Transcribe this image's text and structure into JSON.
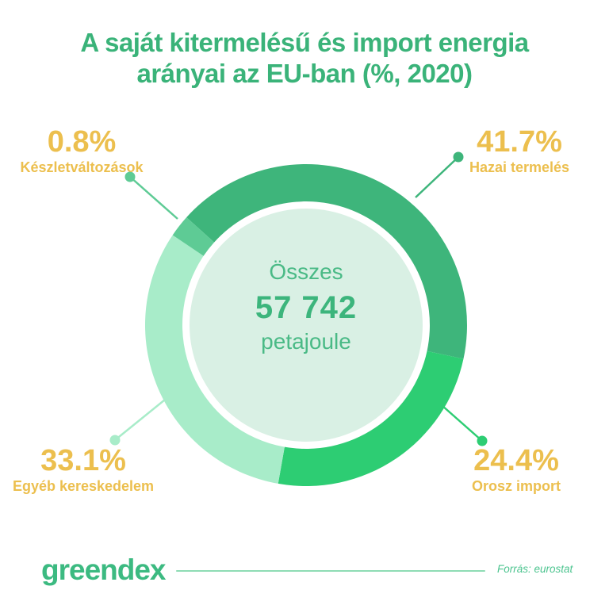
{
  "title": {
    "line1": "A saját kitermelésű és import energia",
    "line2": "arányai az EU-ban (%, 2020)"
  },
  "chart_data": {
    "type": "pie",
    "donut": true,
    "title": "A saját kitermelésű és import energia arányai az EU-ban (%, 2020)",
    "unit": "%",
    "slices": [
      {
        "label": "Hazai termelés",
        "value": 41.7,
        "color": "#3eb57b"
      },
      {
        "label": "Orosz import",
        "value": 24.4,
        "color": "#2dcd73"
      },
      {
        "label": "Egyéb kereskedelem",
        "value": 33.1,
        "color": "#a8ecc9"
      },
      {
        "label": "Készletváltozások",
        "value": 0.8,
        "color": "#5ecb95"
      }
    ],
    "center": {
      "label": "Összes",
      "value": "57 742",
      "unit": "petajoule"
    },
    "legend_position": "corner-callouts"
  },
  "callouts": {
    "top_left": {
      "pct": "0.8%",
      "name": "Készletváltozások"
    },
    "top_right": {
      "pct": "41.7%",
      "name": "Hazai termelés"
    },
    "bottom_left": {
      "pct": "33.1%",
      "name": "Egyéb kereskedelem"
    },
    "bottom_right": {
      "pct": "24.4%",
      "name": "Orosz import"
    }
  },
  "footer": {
    "logo": "greendex",
    "source": "Forrás: eurostat"
  },
  "colors": {
    "title_green": "#3ab379",
    "label_yellow": "#ecbf4e",
    "center_bg": "#d9f0e4",
    "center_text": "#4aba86",
    "center_value": "#3cb57c",
    "logo_green": "#3cba81",
    "rule_green": "#8edcb4",
    "source_green": "#4cc48f"
  }
}
